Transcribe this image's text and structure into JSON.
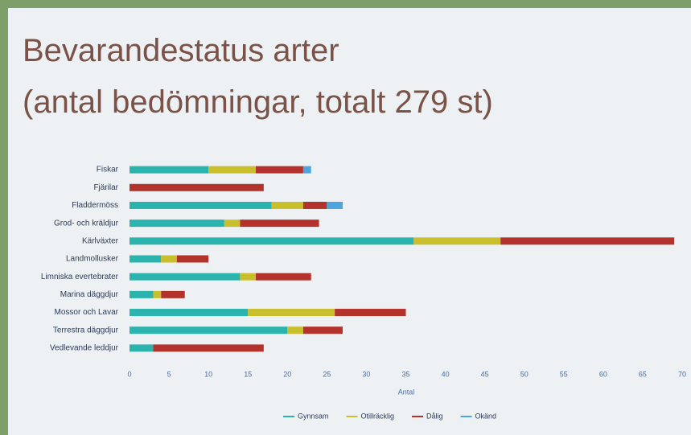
{
  "chart_data": {
    "type": "stacked_bar_horizontal",
    "title": "Bevarandestatus arter",
    "subtitle": "(antal bedömningar, totalt 279 st)",
    "x_label": "Antal",
    "categories": [
      "Fiskar",
      "Fjärilar",
      "Fladdermöss",
      "Grod- och kräldjur",
      "Kärlväxter",
      "Landmollusker",
      "Limniska evertebrater",
      "Marina däggdjur",
      "Mossor och Lavar",
      "Terrestra däggdjur",
      "Vedlevande leddjur"
    ],
    "series": [
      {
        "name": "Gynnsam",
        "color": "#2bb3ad",
        "values": [
          10,
          0,
          18,
          12,
          36,
          4,
          14,
          3,
          15,
          20,
          3
        ]
      },
      {
        "name": "Otillräcklig",
        "color": "#c9bf2c",
        "values": [
          6,
          0,
          4,
          2,
          11,
          2,
          2,
          1,
          11,
          2,
          0
        ]
      },
      {
        "name": "Dålig",
        "color": "#b3322b",
        "values": [
          6,
          17,
          3,
          10,
          22,
          4,
          7,
          3,
          9,
          5,
          14
        ]
      },
      {
        "name": "Okänd",
        "color": "#4ea4dc",
        "values": [
          1,
          0,
          2,
          0,
          0,
          0,
          0,
          0,
          0,
          0,
          0
        ]
      }
    ],
    "xlim": [
      0,
      70
    ],
    "xticks": [
      0,
      5,
      10,
      15,
      20,
      25,
      30,
      35,
      40,
      45,
      50,
      55,
      60,
      65,
      70
    ],
    "legend": "bottom"
  }
}
